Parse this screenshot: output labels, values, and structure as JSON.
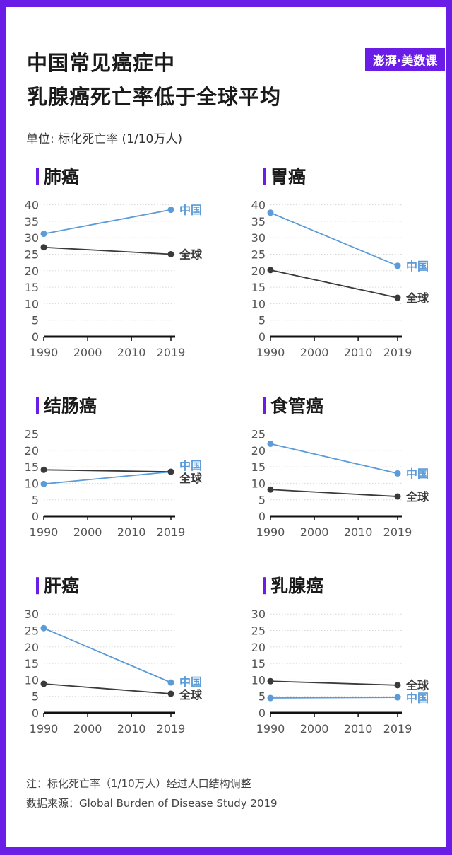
{
  "header": {
    "title_line1": "中国常见癌症中",
    "title_line2": "乳腺癌死亡率低于全球平均",
    "unit": "单位: 标化死亡率 (1/10万人)",
    "logo_text": "澎湃·美数课"
  },
  "footer": {
    "note": "注：标化死亡率（1/10万人）经过人口结构调整",
    "source": "数据来源：Global Burden of Disease Study 2019"
  },
  "colors": {
    "china": "#5b9bd8",
    "global": "#3a3a3a",
    "accent": "#6b1de8"
  },
  "chart_data": [
    {
      "type": "line",
      "title": "肺癌",
      "x": [
        1990,
        2019
      ],
      "xticks": [
        1990,
        2000,
        2010,
        2019
      ],
      "ylim": [
        0,
        40
      ],
      "yticks": [
        0,
        5,
        10,
        15,
        20,
        25,
        30,
        35,
        40
      ],
      "series": [
        {
          "name": "中国",
          "values": [
            31.2,
            38.5
          ]
        },
        {
          "name": "全球",
          "values": [
            27.1,
            25.0
          ]
        }
      ]
    },
    {
      "type": "line",
      "title": "胃癌",
      "x": [
        1990,
        2019
      ],
      "xticks": [
        1990,
        2000,
        2010,
        2019
      ],
      "ylim": [
        0,
        40
      ],
      "yticks": [
        0,
        5,
        10,
        15,
        20,
        25,
        30,
        35,
        40
      ],
      "series": [
        {
          "name": "中国",
          "values": [
            37.6,
            21.5
          ]
        },
        {
          "name": "全球",
          "values": [
            20.2,
            11.8
          ]
        }
      ]
    },
    {
      "type": "line",
      "title": "结肠癌",
      "x": [
        1990,
        2019
      ],
      "xticks": [
        1990,
        2000,
        2010,
        2019
      ],
      "ylim": [
        0,
        25
      ],
      "yticks": [
        0,
        5,
        10,
        15,
        20,
        25
      ],
      "series": [
        {
          "name": "中国",
          "values": [
            9.8,
            13.5
          ]
        },
        {
          "name": "全球",
          "values": [
            14.1,
            13.5
          ]
        }
      ]
    },
    {
      "type": "line",
      "title": "食管癌",
      "x": [
        1990,
        2019
      ],
      "xticks": [
        1990,
        2000,
        2010,
        2019
      ],
      "ylim": [
        0,
        25
      ],
      "yticks": [
        0,
        5,
        10,
        15,
        20,
        25
      ],
      "series": [
        {
          "name": "中国",
          "values": [
            22.0,
            13.0
          ]
        },
        {
          "name": "全球",
          "values": [
            8.1,
            6.0
          ]
        }
      ]
    },
    {
      "type": "line",
      "title": "肝癌",
      "x": [
        1990,
        2019
      ],
      "xticks": [
        1990,
        2000,
        2010,
        2019
      ],
      "ylim": [
        0,
        30
      ],
      "yticks": [
        0,
        5,
        10,
        15,
        20,
        25,
        30
      ],
      "series": [
        {
          "name": "中国",
          "values": [
            25.7,
            9.2
          ]
        },
        {
          "name": "全球",
          "values": [
            8.8,
            5.8
          ]
        }
      ]
    },
    {
      "type": "line",
      "title": "乳腺癌",
      "x": [
        1990,
        2019
      ],
      "xticks": [
        1990,
        2000,
        2010,
        2019
      ],
      "ylim": [
        0,
        30
      ],
      "yticks": [
        0,
        5,
        10,
        15,
        20,
        25,
        30
      ],
      "series": [
        {
          "name": "中国",
          "values": [
            4.5,
            4.7
          ]
        },
        {
          "name": "全球",
          "values": [
            9.6,
            8.4
          ]
        }
      ]
    }
  ]
}
